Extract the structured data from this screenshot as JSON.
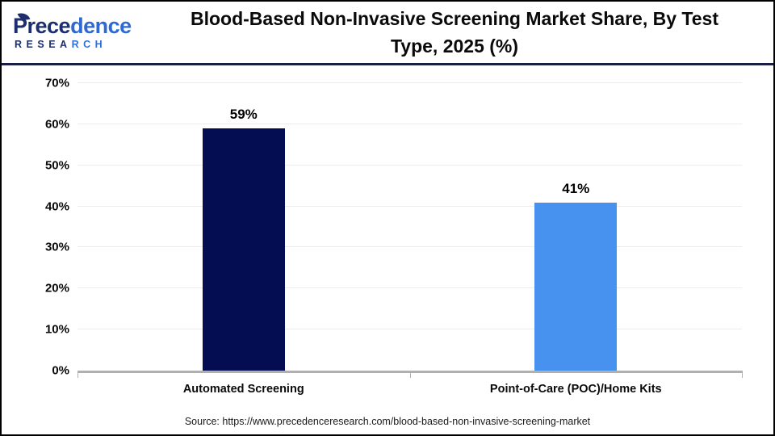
{
  "header": {
    "logo": {
      "word_part1": "Prece",
      "word_part2": "dence",
      "sub_part1": "RESEA",
      "sub_part2": "RCH",
      "navy": "#1d2e6e",
      "blue": "#2f6fdd"
    },
    "title_line1": "Blood-Based Non-Invasive Screening Market Share, By Test",
    "title_line2": "Type, 2025 (%)"
  },
  "chart_data": {
    "type": "bar",
    "title": "Blood-Based Non-Invasive Screening Market Share, By Test Type, 2025 (%)",
    "categories": [
      "Automated Screening",
      "Point-of-Care (POC)/Home Kits"
    ],
    "values": [
      59,
      41
    ],
    "value_labels": [
      "59%",
      "41%"
    ],
    "bar_colors": [
      "#040d52",
      "#4892ef"
    ],
    "xlabel": "",
    "ylabel": "",
    "ylim": [
      0,
      70
    ],
    "yticks": [
      0,
      10,
      20,
      30,
      40,
      50,
      60,
      70
    ],
    "ytick_labels": [
      "0%",
      "10%",
      "20%",
      "30%",
      "40%",
      "50%",
      "60%",
      "70%"
    ],
    "grid": true,
    "gridline_color": "#ececec",
    "axis_line_color": "#b0b0b0",
    "legend": false
  },
  "footer": {
    "source": "Source: https://www.precedenceresearch.com/blood-based-non-invasive-screening-market"
  }
}
